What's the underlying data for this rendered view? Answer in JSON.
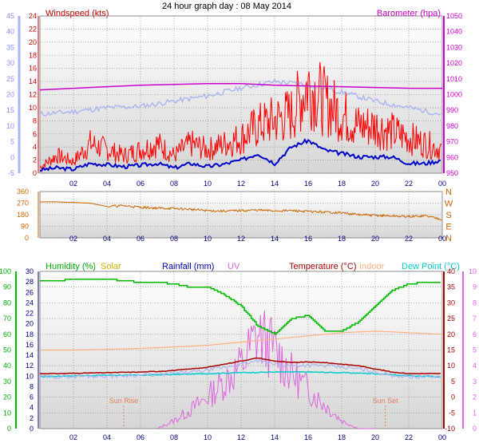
{
  "page_title": "24 hour graph day : 08 May 2014",
  "colors": {
    "windspeed": "#ff0000",
    "gust_label": "#cc0000",
    "wind_avg": "#0000cc",
    "wind_run_bg": "#aab4f0",
    "barometer": "#cc00cc",
    "direction": "#cc6600",
    "humidity": "#00bb00",
    "solar": "#e0c000",
    "solar_fill": "#ffc850",
    "rainfall": "#0000aa",
    "uv": "#dd66dd",
    "temperature": "#aa0000",
    "indoor": "#ffb080",
    "dewpoint": "#00cccc",
    "plot_bg_top": "#ffffff",
    "plot_bg_bottom": "#d8d8d8"
  },
  "chart_data": [
    {
      "type": "line",
      "panel": "wind",
      "x_ticks": [
        "02",
        "04",
        "06",
        "08",
        "10",
        "12",
        "14",
        "16",
        "18",
        "20",
        "22",
        "00"
      ],
      "left_axis": {
        "label": "Windspeed (kts)",
        "range": [
          0,
          24
        ],
        "ticks": [
          0,
          2,
          4,
          6,
          8,
          10,
          12,
          14,
          16,
          18,
          20,
          22,
          24
        ]
      },
      "far_left_axis": {
        "range": [
          -5,
          45
        ],
        "ticks": [
          -5,
          0,
          5,
          10,
          15,
          20,
          25,
          30,
          35,
          40,
          45
        ]
      },
      "right_axis": {
        "label": "Barometer (hpa)",
        "range": [
          950,
          1050
        ],
        "ticks": [
          950,
          960,
          970,
          980,
          990,
          1000,
          1010,
          1020,
          1030,
          1040,
          1050
        ]
      },
      "series": [
        {
          "key": "gust",
          "x": [
            0,
            1,
            2,
            3,
            4,
            5,
            6,
            7,
            8,
            9,
            10,
            11,
            12,
            13,
            14,
            15,
            16,
            17,
            18,
            19,
            20,
            21,
            22,
            23,
            24
          ],
          "y": [
            1,
            3,
            2,
            5,
            4,
            3,
            4,
            5,
            3,
            5,
            4,
            5,
            6,
            8,
            9,
            10,
            15,
            12,
            10,
            8,
            8,
            7,
            6,
            5,
            4
          ]
        },
        {
          "key": "average",
          "x": [
            0,
            1,
            2,
            3,
            4,
            5,
            6,
            7,
            8,
            9,
            10,
            11,
            12,
            13,
            14,
            15,
            16,
            17,
            18,
            19,
            20,
            21,
            22,
            23,
            24
          ],
          "y": [
            0.5,
            0.8,
            0.6,
            1.5,
            1.3,
            1,
            1.2,
            1.5,
            0.8,
            1.5,
            1,
            1.4,
            2,
            3,
            1.5,
            4,
            5,
            3.5,
            3,
            2.5,
            2.5,
            2.5,
            1.5,
            1.5,
            2
          ]
        },
        {
          "key": "wind_run",
          "x": [
            0,
            2,
            4,
            6,
            8,
            10,
            12,
            14,
            16,
            18,
            20,
            22,
            24
          ],
          "y": [
            9,
            9.4,
            10,
            10.2,
            11,
            11.8,
            13,
            14,
            13.5,
            12.4,
            11,
            10,
            9
          ]
        },
        {
          "key": "barometer",
          "x": [
            0,
            2,
            4,
            6,
            8,
            10,
            12,
            14,
            16,
            18,
            20,
            22,
            24
          ],
          "y": [
            1003,
            1004,
            1005,
            1006,
            1006.5,
            1007,
            1007,
            1006,
            1005.5,
            1005,
            1004.5,
            1004,
            1004
          ]
        }
      ]
    },
    {
      "type": "line",
      "panel": "direction",
      "x_ticks": [
        "02",
        "04",
        "06",
        "08",
        "10",
        "12",
        "14",
        "16",
        "18",
        "20",
        "22",
        "00"
      ],
      "left_axis": {
        "range": [
          0,
          360
        ],
        "ticks": [
          0,
          90,
          180,
          270,
          360
        ]
      },
      "right_axis_labels": [
        "N",
        "E",
        "S",
        "W",
        "N"
      ],
      "series": [
        {
          "key": "direction",
          "x": [
            0,
            1,
            2,
            3,
            4,
            5,
            6,
            7,
            8,
            9,
            10,
            11,
            12,
            13,
            14,
            15,
            16,
            17,
            18,
            19,
            20,
            21,
            22,
            23,
            24
          ],
          "y": [
            280,
            280,
            275,
            270,
            245,
            250,
            238,
            232,
            228,
            222,
            212,
            208,
            212,
            216,
            210,
            212,
            205,
            200,
            195,
            180,
            175,
            170,
            165,
            172,
            145
          ]
        }
      ]
    },
    {
      "type": "line",
      "panel": "temperature",
      "x_ticks": [
        "02",
        "04",
        "06",
        "08",
        "10",
        "12",
        "14",
        "16",
        "18",
        "20",
        "22",
        "00"
      ],
      "legend": [
        "Humidity (%)",
        "Solar",
        "Rainfall (mm)",
        "UV",
        "Temperature (°C)",
        "Indoor",
        "Dew Point (°C)"
      ],
      "labels": [
        "Sun Rise",
        "Sun Set"
      ],
      "humidity_axis": {
        "range": [
          0,
          100
        ],
        "ticks": [
          0,
          10,
          20,
          30,
          40,
          50,
          60,
          70,
          80,
          90,
          100
        ]
      },
      "rainfall_axis": {
        "range": [
          0,
          30
        ],
        "ticks": [
          0,
          2,
          4,
          6,
          8,
          10,
          12,
          14,
          16,
          18,
          20,
          22,
          24,
          26,
          28,
          30
        ]
      },
      "temperature_axis": {
        "range": [
          -10,
          40
        ],
        "ticks": [
          -10,
          -5,
          0,
          5,
          10,
          15,
          20,
          25,
          30,
          35,
          40
        ]
      },
      "uv_axis": {
        "range": [
          0,
          10
        ],
        "ticks": [
          0,
          1,
          2,
          3,
          4,
          5,
          6,
          7,
          8,
          9,
          10
        ]
      },
      "series": [
        {
          "key": "humidity",
          "x": [
            0,
            1,
            2,
            3,
            4,
            5,
            6,
            7,
            8,
            9,
            10,
            11,
            12,
            13,
            14,
            15,
            16,
            17,
            18,
            19,
            20,
            21,
            22,
            23,
            24
          ],
          "y": [
            94,
            94,
            95,
            95,
            95,
            94,
            93,
            93,
            92,
            90,
            90,
            85,
            78,
            65,
            60,
            70,
            72,
            62,
            62,
            68,
            78,
            88,
            92,
            93,
            93
          ]
        },
        {
          "key": "solar",
          "x": [
            0,
            4.5,
            5,
            6,
            7,
            8,
            9,
            10,
            11,
            12,
            13,
            14,
            15,
            16,
            17,
            18,
            19,
            20,
            20.5,
            24
          ],
          "y": [
            0,
            0,
            0,
            50,
            120,
            200,
            280,
            350,
            400,
            450,
            480,
            430,
            390,
            330,
            280,
            220,
            130,
            50,
            0,
            0
          ]
        },
        {
          "key": "uv",
          "x": [
            0,
            7,
            8,
            9,
            10,
            11,
            12,
            13,
            14,
            15,
            16,
            17,
            18,
            19,
            20,
            24
          ],
          "y": [
            0,
            0,
            0.5,
            1.2,
            2,
            3,
            4,
            6,
            5,
            3.5,
            2.5,
            1.5,
            0.5,
            0,
            0,
            0
          ]
        },
        {
          "key": "temperature",
          "x": [
            0,
            1,
            2,
            3,
            4,
            5,
            6,
            7,
            8,
            9,
            10,
            11,
            12,
            13,
            14,
            15,
            16,
            17,
            18,
            19,
            20,
            21,
            22,
            23,
            24
          ],
          "y": [
            7.5,
            7.5,
            7.6,
            7.7,
            7.8,
            7.9,
            8,
            8.2,
            8.5,
            9,
            9.5,
            10.5,
            11.5,
            12.5,
            11.5,
            11,
            11.2,
            11,
            10.5,
            10,
            9,
            8,
            7.5,
            7.5,
            7.5
          ]
        },
        {
          "key": "indoor",
          "x": [
            0,
            2,
            4,
            6,
            8,
            10,
            12,
            14,
            16,
            18,
            20,
            22,
            24
          ],
          "y": [
            15,
            15,
            15.2,
            15.5,
            16,
            16.5,
            17.5,
            18.5,
            19.5,
            20.5,
            21,
            20.5,
            20
          ]
        },
        {
          "key": "dewpoint",
          "x": [
            0,
            2,
            4,
            6,
            8,
            10,
            12,
            14,
            16,
            18,
            20,
            22,
            24
          ],
          "y": [
            6.5,
            6.8,
            7,
            7,
            7.2,
            7.5,
            7.8,
            8,
            8,
            7.8,
            7.5,
            6.8,
            6.5
          ]
        }
      ]
    }
  ]
}
